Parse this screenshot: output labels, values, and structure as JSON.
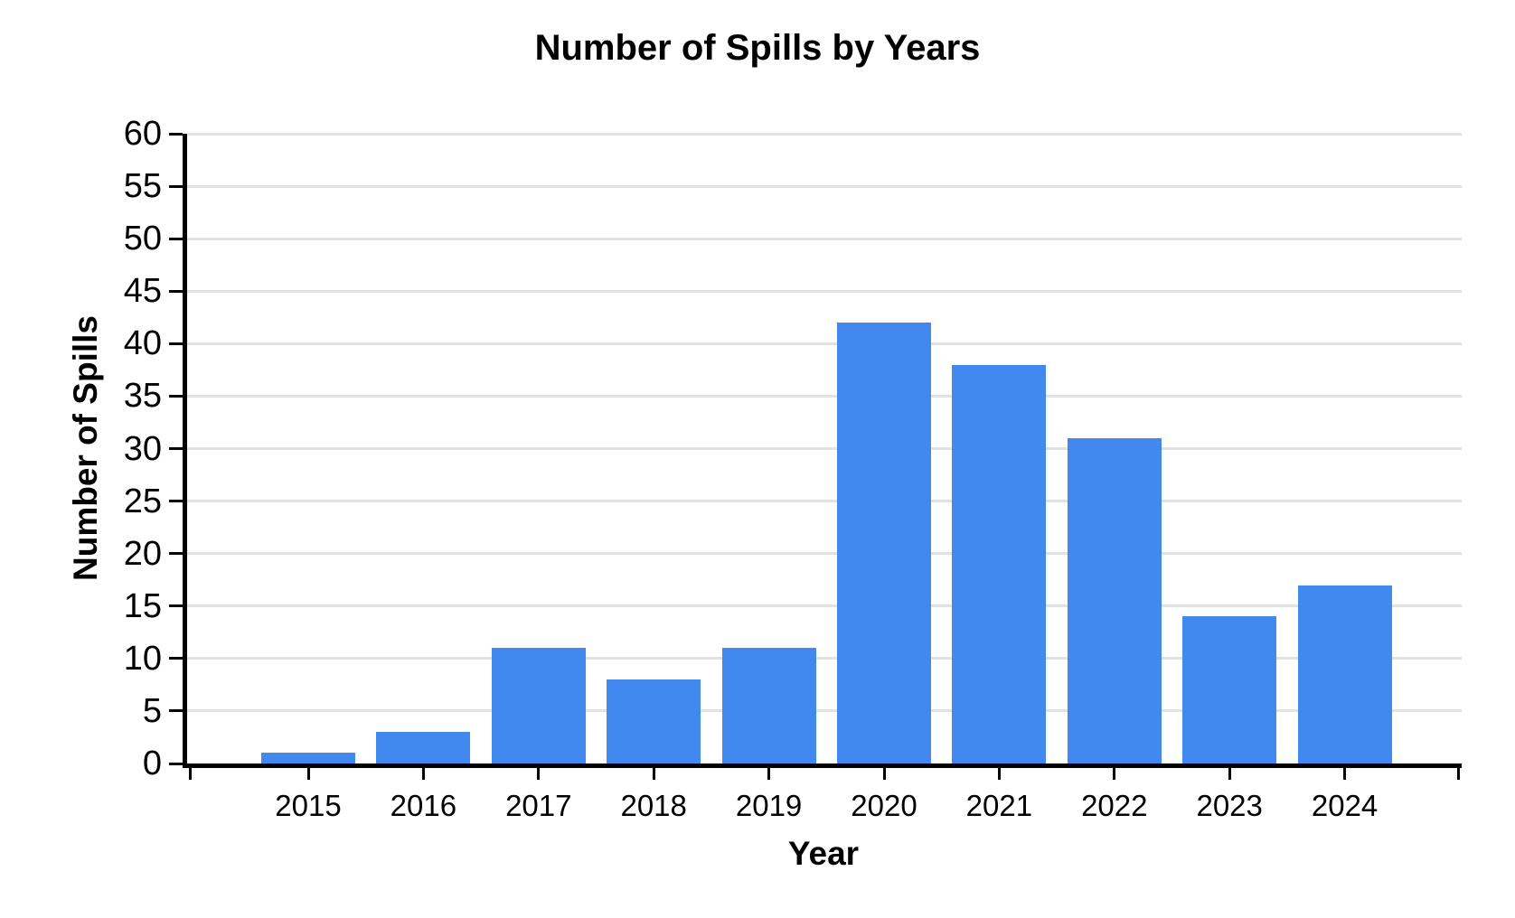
{
  "figure": {
    "title": "Number of Spills by Years",
    "x_axis_title": "Year",
    "y_axis_title": "Number of Spills"
  },
  "chart_data": {
    "type": "bar",
    "title": "Number of Spills by Years",
    "xlabel": "Year",
    "ylabel": "Number of Spills",
    "categories": [
      "2015",
      "2016",
      "2017",
      "2018",
      "2019",
      "2020",
      "2021",
      "2022",
      "2023",
      "2024"
    ],
    "values": [
      1,
      3,
      11,
      8,
      11,
      42,
      38,
      31,
      14,
      17
    ],
    "ylim": [
      0,
      60
    ],
    "ytick_step": 5,
    "ytick_labels": [
      "0",
      "5",
      "10",
      "15",
      "20",
      "25",
      "30",
      "35",
      "40",
      "45",
      "50",
      "55",
      "60"
    ],
    "grid": "horizontal",
    "legend": "none",
    "bar_color": "#4189ee",
    "gridline_color": "#e2e2e2",
    "axis_color": "#000000",
    "text_color": "#000000",
    "background_color": "#ffffff"
  }
}
